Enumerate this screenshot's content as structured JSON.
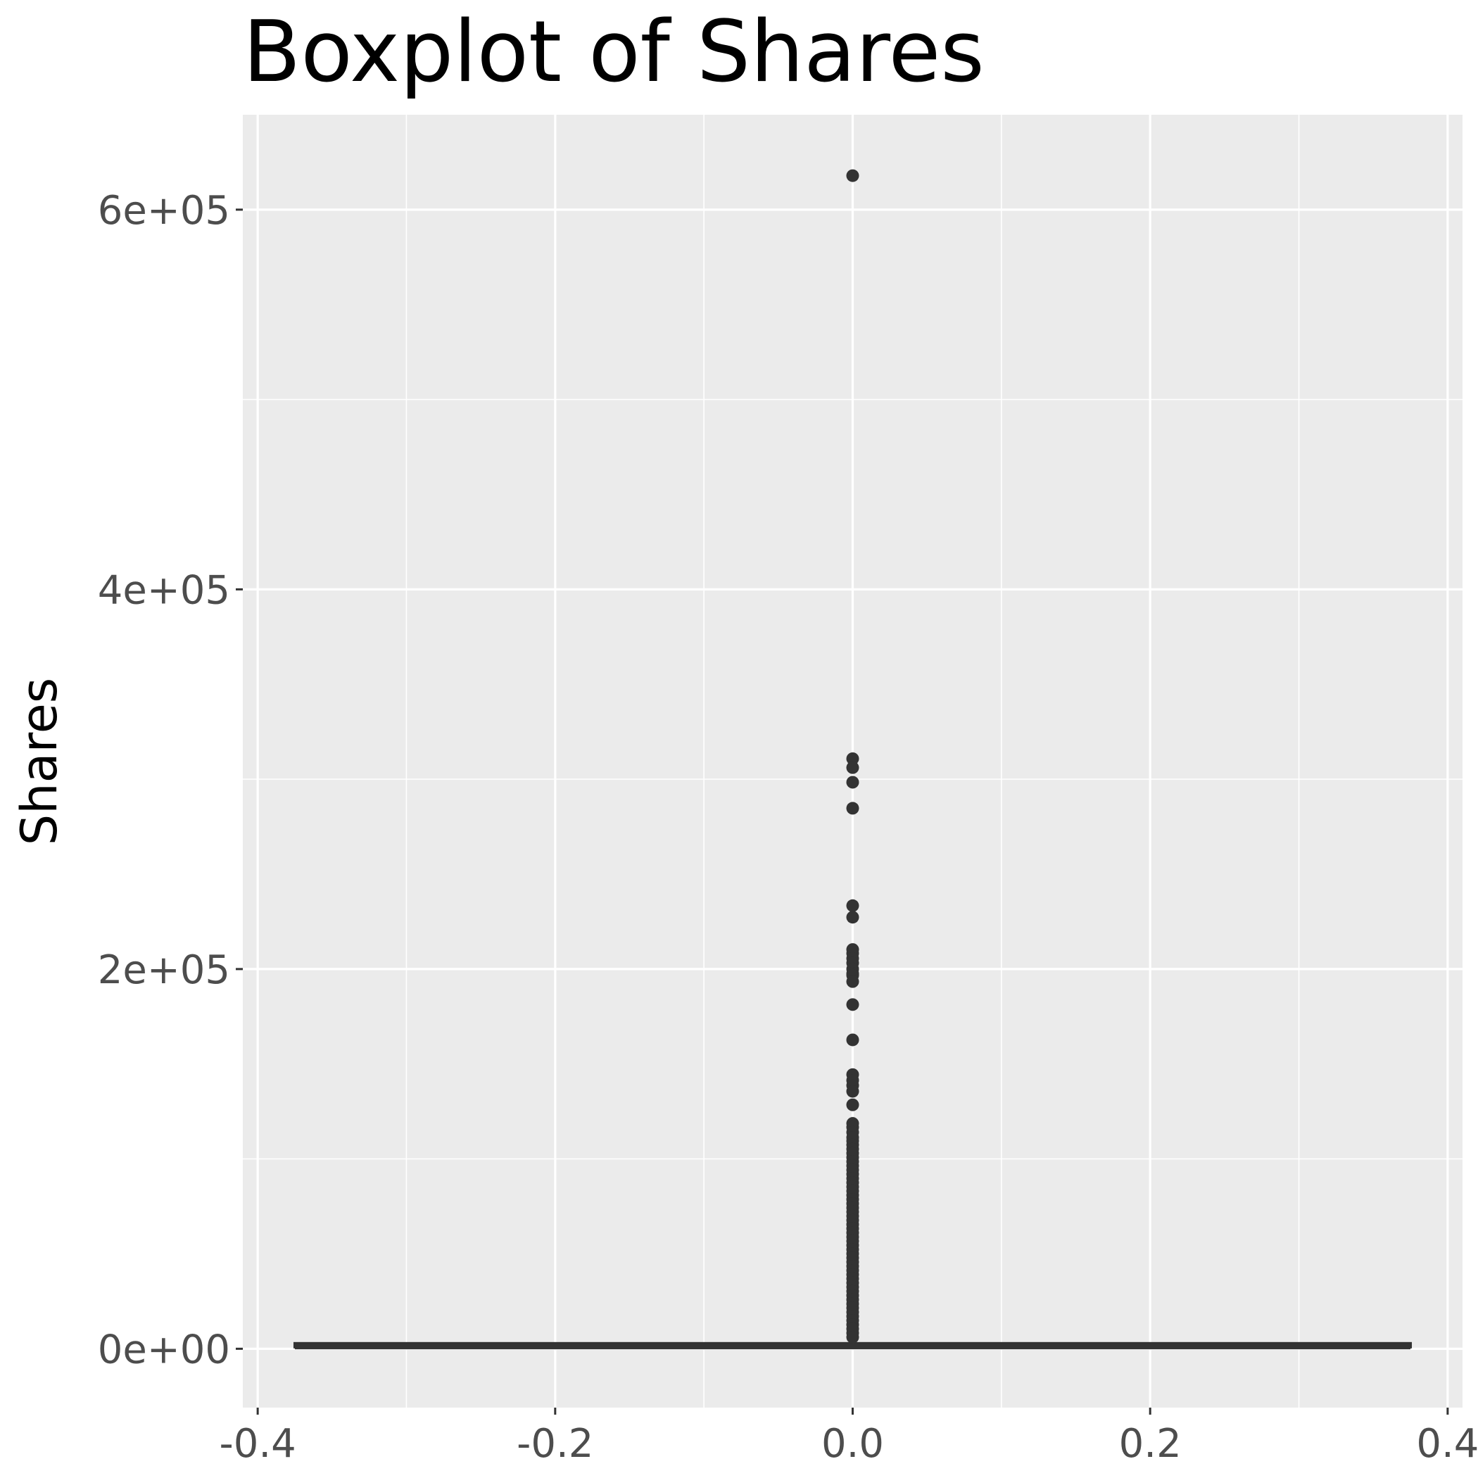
{
  "chart_data": {
    "type": "boxplot",
    "title": "Boxplot of Shares",
    "xlabel": "",
    "ylabel": "Shares",
    "x_ticks": [
      "-0.4",
      "-0.2",
      "0.0",
      "0.2",
      "0.4"
    ],
    "y_ticks": [
      "0e+00",
      "2e+05",
      "4e+05",
      "6e+05"
    ],
    "xlim": [
      -0.41,
      0.41
    ],
    "ylim": [
      -31000,
      650000
    ],
    "grid": true,
    "legend": "none",
    "box": {
      "x": 0.0,
      "width": 0.75,
      "min": 1,
      "q1": 946,
      "median": 1400,
      "q3": 2800,
      "whisker_low": 1,
      "whisker_high": 5500
    },
    "outliers": [
      617900,
      310800,
      306100,
      298400,
      284700,
      233400,
      227300,
      210300,
      208300,
      205600,
      203200,
      200000,
      197600,
      196700,
      193400,
      181300,
      162700,
      144400,
      141400,
      138700,
      135600,
      128500,
      118700,
      116700,
      114000,
      111300,
      109500,
      107400,
      105200,
      103000,
      100800,
      98600,
      96400,
      94200,
      92000,
      89700,
      87500,
      85300,
      83100,
      80900,
      78700,
      76500,
      74300,
      72100,
      69900,
      67700,
      65500,
      63300,
      61100,
      58900,
      56700,
      54500,
      52300,
      50100,
      47900,
      45700,
      43500,
      41300,
      39100,
      36900,
      34700,
      32500,
      30300,
      28100,
      25900,
      23700,
      21500,
      19300,
      17100,
      14900,
      12700,
      10500,
      8300,
      6100
    ],
    "colors": {
      "panel": "#ebebeb",
      "grid": "#ffffff",
      "box_line": "#333333",
      "point": "#333333",
      "tick": "#333333"
    }
  }
}
